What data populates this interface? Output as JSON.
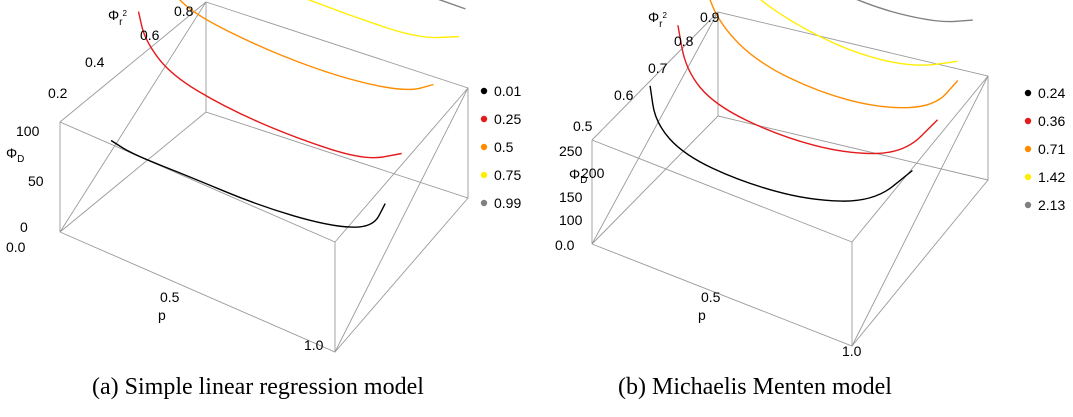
{
  "chart_data": [
    {
      "type": "line",
      "panel_caption": "(a)  Simple linear regression model",
      "xlabel": "p",
      "ylabel": "Φ_D",
      "zlabel": "Φ_{r²}",
      "x_ticks": [
        "0.0",
        "0.5",
        "1.0"
      ],
      "y_ticks": [
        "0",
        "50",
        "100"
      ],
      "z_ticks": [
        "0.2",
        "0.4",
        "0.6",
        "0.8"
      ],
      "xlim": [
        0,
        1
      ],
      "ylim": [
        0,
        100
      ],
      "zlim": [
        0.05,
        0.85
      ],
      "legend_position": "right",
      "series": [
        {
          "name": "0.01",
          "color": "#000000",
          "points": [
            [
              0.02,
              20,
              0.3
            ],
            [
              0.1,
              16,
              0.3
            ],
            [
              0.3,
              15,
              0.31
            ],
            [
              0.55,
              16,
              0.31
            ],
            [
              0.8,
              22,
              0.32
            ],
            [
              0.95,
              34,
              0.33
            ],
            [
              0.99,
              58,
              0.34
            ]
          ]
        },
        {
          "name": "0.25",
          "color": "#e41a1c",
          "points": [
            [
              0.02,
              98,
              0.45
            ],
            [
              0.05,
              78,
              0.44
            ],
            [
              0.15,
              60,
              0.43
            ],
            [
              0.35,
              52,
              0.43
            ],
            [
              0.6,
              52,
              0.43
            ],
            [
              0.85,
              56,
              0.44
            ],
            [
              0.97,
              70,
              0.46
            ]
          ]
        },
        {
          "name": "0.5",
          "color": "#ff8c00",
          "points": [
            [
              0.03,
              98,
              0.58
            ],
            [
              0.08,
              84,
              0.57
            ],
            [
              0.2,
              76,
              0.57
            ],
            [
              0.45,
              74,
              0.57
            ],
            [
              0.7,
              76,
              0.58
            ],
            [
              0.9,
              82,
              0.6
            ],
            [
              0.98,
              92,
              0.62
            ]
          ]
        },
        {
          "name": "0.75",
          "color": "#ffee00",
          "points": [
            [
              0.05,
              99,
              0.72
            ],
            [
              0.15,
              92,
              0.71
            ],
            [
              0.35,
              88,
              0.71
            ],
            [
              0.6,
              88,
              0.72
            ],
            [
              0.85,
              91,
              0.73
            ],
            [
              0.98,
              99,
              0.76
            ]
          ]
        },
        {
          "name": "0.99",
          "color": "#808080",
          "points": [
            [
              0.1,
              100,
              0.82
            ],
            [
              0.4,
              98,
              0.82
            ],
            [
              0.7,
              98,
              0.83
            ],
            [
              0.95,
              100,
              0.84
            ]
          ]
        }
      ]
    },
    {
      "type": "line",
      "panel_caption": "(b)  Michaelis Menten model",
      "xlabel": "p",
      "ylabel": "Φ_D",
      "zlabel": "Φ_{r²}",
      "x_ticks": [
        "0.0",
        "0.5",
        "1.0"
      ],
      "y_ticks": [
        "100",
        "150",
        "200",
        "250"
      ],
      "z_ticks": [
        "0.5",
        "0.6",
        "0.7",
        "0.8",
        "0.9"
      ],
      "xlim": [
        0,
        1
      ],
      "ylim": [
        50,
        290
      ],
      "zlim": [
        0.45,
        0.95
      ],
      "legend_position": "right",
      "series": [
        {
          "name": "0.24",
          "color": "#000000",
          "points": [
            [
              0.02,
              195,
              0.66
            ],
            [
              0.06,
              140,
              0.64
            ],
            [
              0.18,
              105,
              0.63
            ],
            [
              0.4,
              95,
              0.63
            ],
            [
              0.65,
              100,
              0.64
            ],
            [
              0.88,
              130,
              0.66
            ],
            [
              0.99,
              185,
              0.7
            ]
          ]
        },
        {
          "name": "0.36",
          "color": "#e41a1c",
          "points": [
            [
              0.03,
              230,
              0.76
            ],
            [
              0.08,
              160,
              0.74
            ],
            [
              0.2,
              118,
              0.73
            ],
            [
              0.45,
              105,
              0.73
            ],
            [
              0.7,
              112,
              0.74
            ],
            [
              0.9,
              140,
              0.76
            ],
            [
              0.99,
              195,
              0.8
            ]
          ]
        },
        {
          "name": "0.71",
          "color": "#ff8c00",
          "points": [
            [
              0.05,
              250,
              0.84
            ],
            [
              0.12,
              180,
              0.83
            ],
            [
              0.28,
              138,
              0.82
            ],
            [
              0.52,
              125,
              0.82
            ],
            [
              0.75,
              132,
              0.83
            ],
            [
              0.93,
              158,
              0.85
            ],
            [
              0.99,
              200,
              0.88
            ]
          ]
        },
        {
          "name": "1.42",
          "color": "#ffee00",
          "points": [
            [
              0.08,
              260,
              0.89
            ],
            [
              0.2,
              210,
              0.88
            ],
            [
              0.4,
              178,
              0.88
            ],
            [
              0.62,
              170,
              0.88
            ],
            [
              0.82,
              180,
              0.89
            ],
            [
              0.96,
              205,
              0.91
            ]
          ]
        },
        {
          "name": "2.13",
          "color": "#808080",
          "points": [
            [
              0.15,
              275,
              0.93
            ],
            [
              0.35,
              240,
              0.93
            ],
            [
              0.6,
              226,
              0.93
            ],
            [
              0.85,
              236,
              0.94
            ],
            [
              0.98,
              262,
              0.95
            ]
          ]
        }
      ]
    }
  ]
}
